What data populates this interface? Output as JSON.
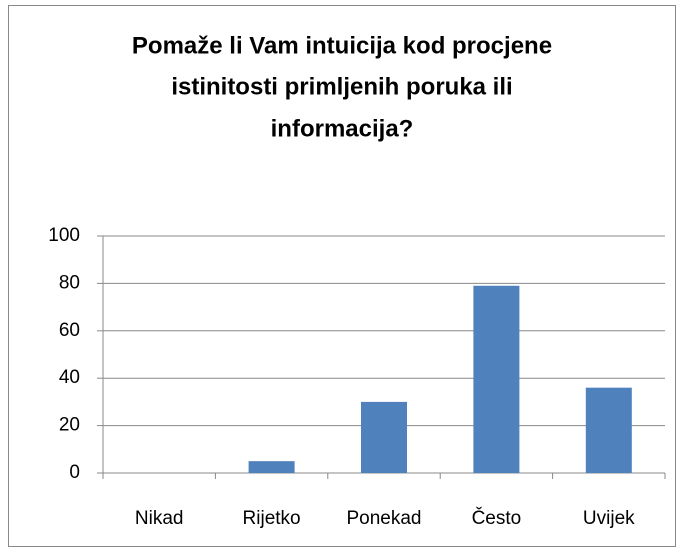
{
  "chart_data": {
    "type": "bar",
    "title": [
      "Pomaže li Vam intuicija kod procjene",
      "istinitosti primljenih poruka ili",
      "informacija?"
    ],
    "categories": [
      "Nikad",
      "Rijetko",
      "Ponekad",
      "Često",
      "Uvijek"
    ],
    "values": [
      0,
      5,
      30,
      79,
      36
    ],
    "color": "#4f81bd",
    "ylim": [
      0,
      100
    ],
    "yticks": [
      0,
      20,
      40,
      60,
      80,
      100
    ],
    "grid": true
  }
}
